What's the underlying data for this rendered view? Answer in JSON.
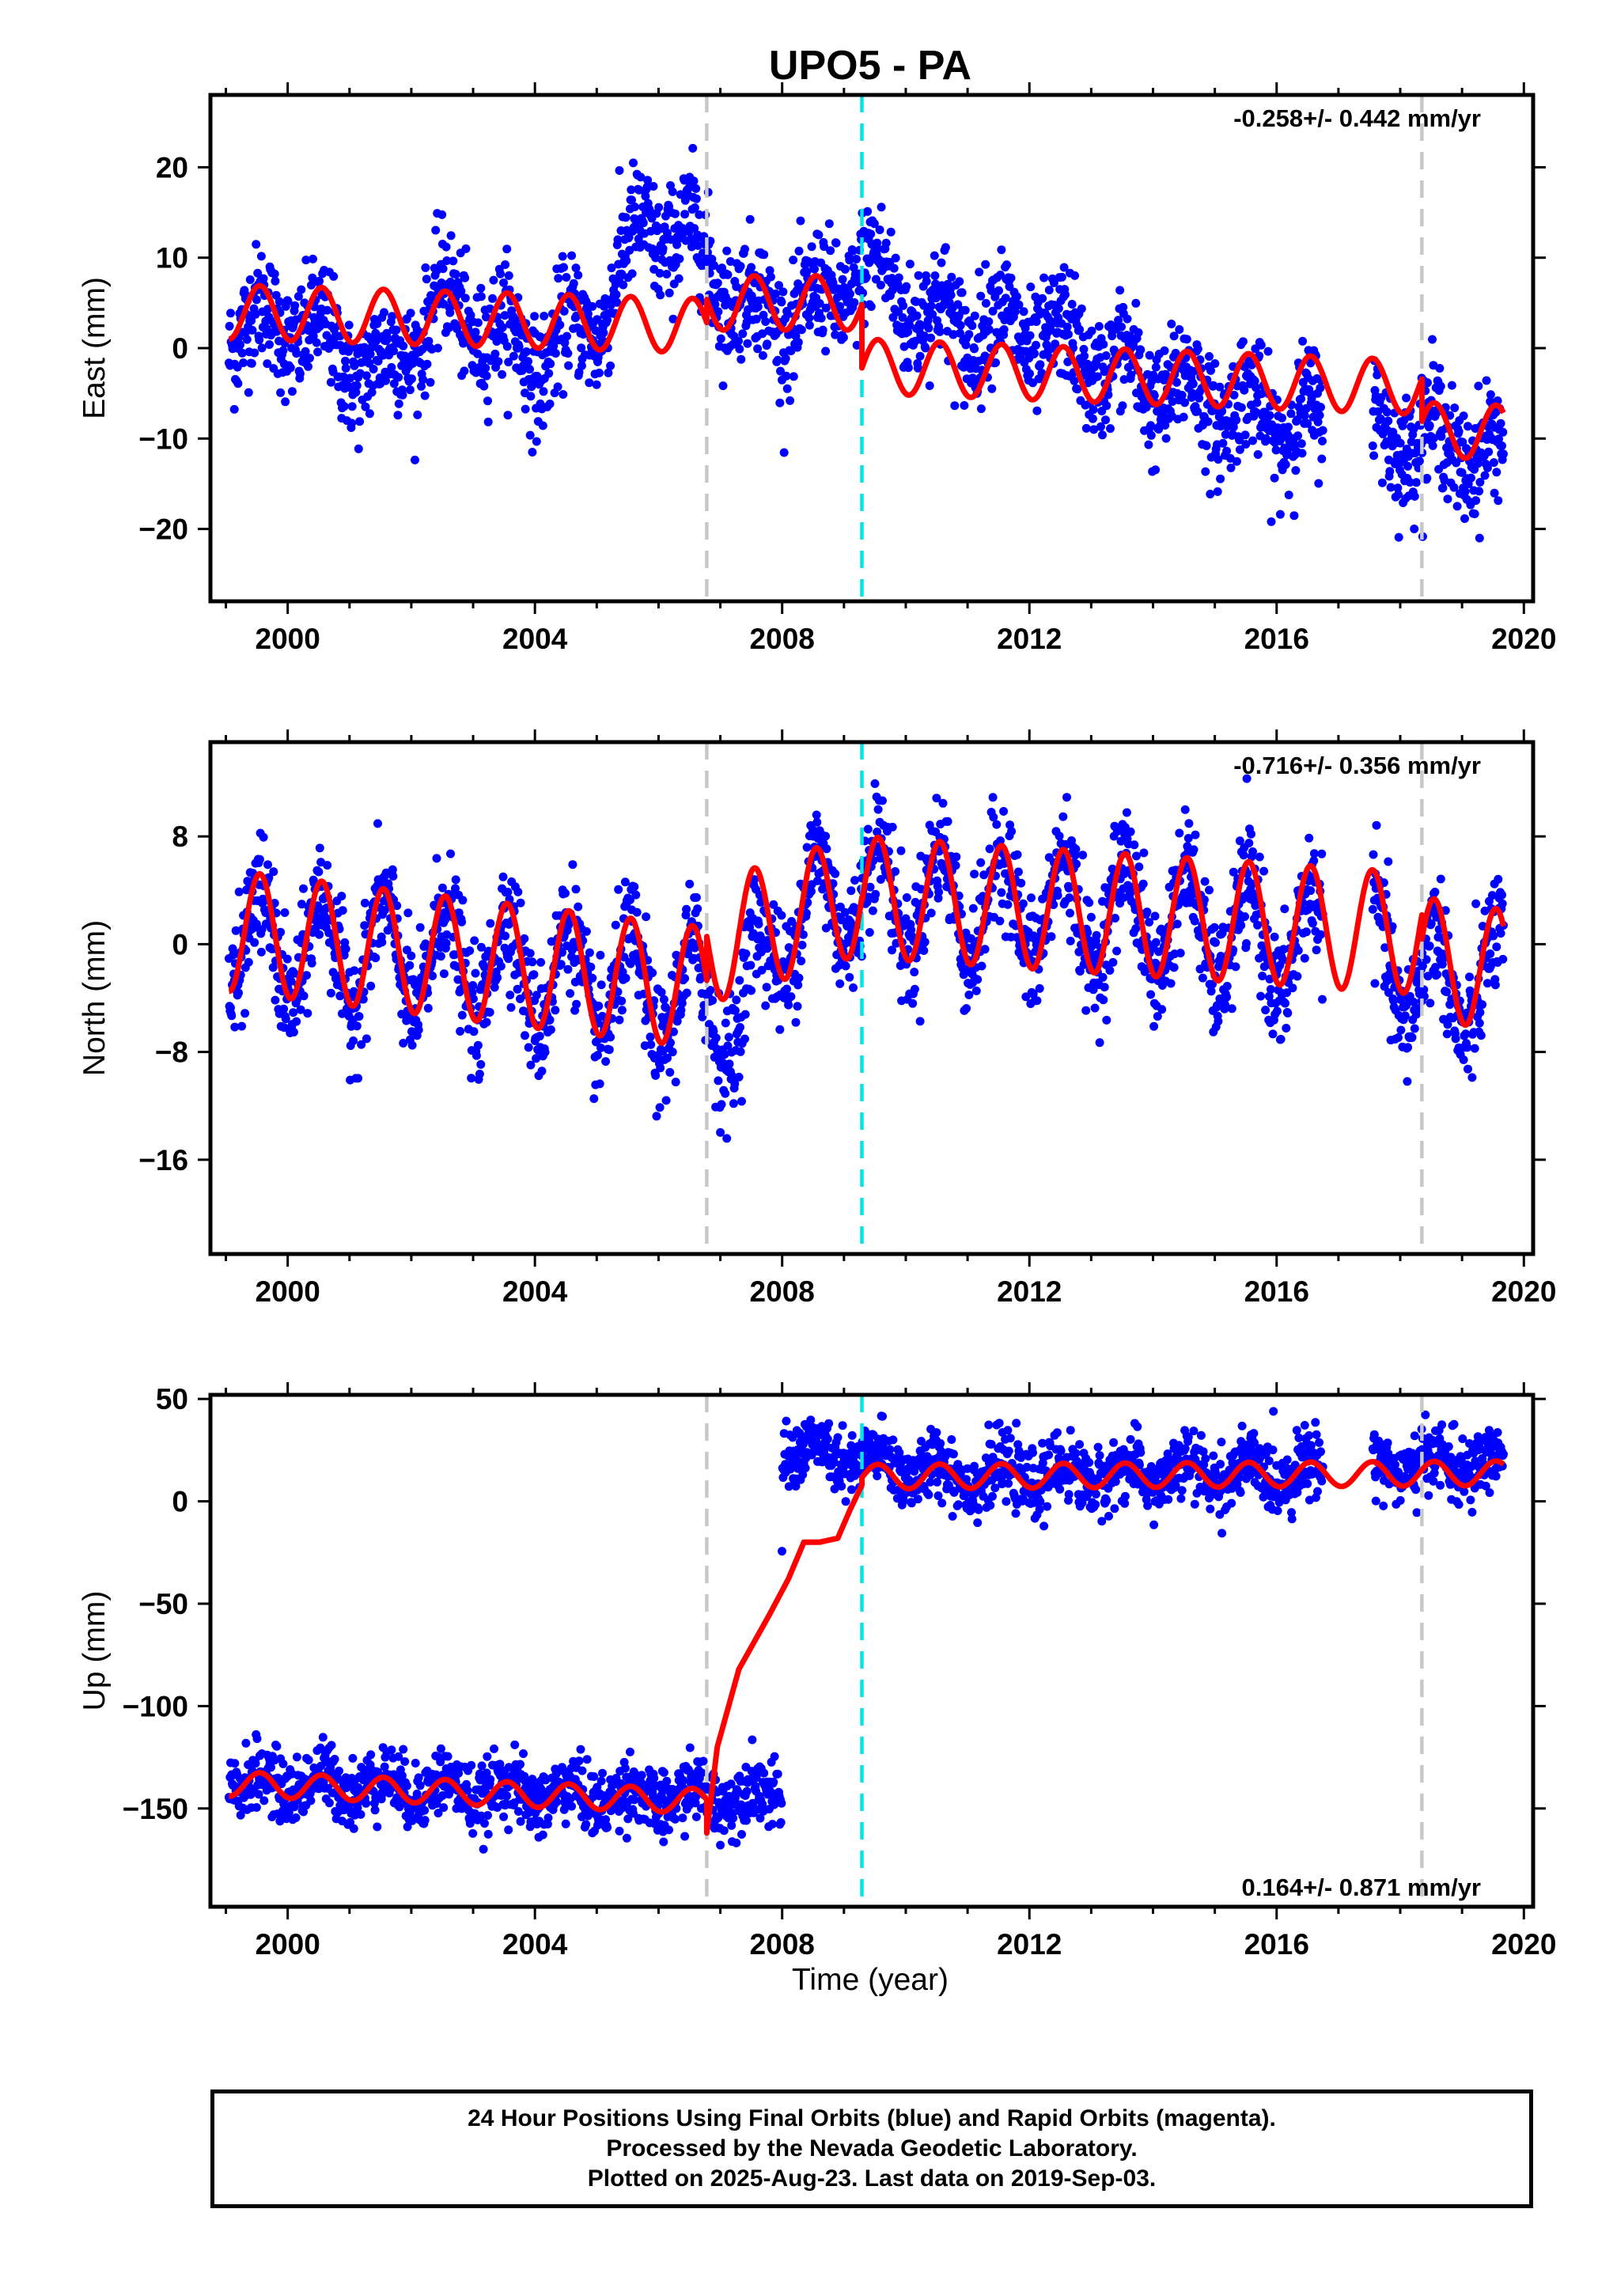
{
  "title": "UPO5 - PA",
  "xlabel": "Time (year)",
  "footer": {
    "line1": "24 Hour Positions Using Final Orbits (blue) and Rapid Orbits (magenta).",
    "line2": "Processed by the Nevada Geodetic Laboratory.",
    "line3": "Plotted on 2025-Aug-23. Last data on 2019-Sep-03."
  },
  "colors": {
    "final_orbits": "#0000ff",
    "model": "#ff0000",
    "equipment_change": "#c8c8c8",
    "earthquake": "#00e5e5"
  },
  "chart_data": [
    {
      "type": "scatter",
      "panel": "east",
      "ylabel": "East (mm)",
      "rate_text": "-0.258+/- 0.442 mm/yr",
      "rate_position": "top-right",
      "xlim": [
        1998.75,
        2020.15
      ],
      "ylim": [
        -28,
        28
      ],
      "xticks": [
        2000,
        2004,
        2008,
        2012,
        2016,
        2020
      ],
      "yticks": [
        -20,
        -10,
        0,
        10,
        20
      ],
      "x_range_data": [
        1999.05,
        2019.67
      ],
      "vertical_lines": [
        {
          "x": 2006.78,
          "type": "equipment_change"
        },
        {
          "x": 2009.29,
          "type": "earthquake"
        },
        {
          "x": 2018.35,
          "type": "equipment_change"
        }
      ],
      "series": [
        {
          "kind": "observations",
          "trend": [
            [
              1999.0,
              2.0
            ],
            [
              2000.0,
              3.0
            ],
            [
              2001.5,
              -3.0
            ],
            [
              2002.5,
              5.0
            ],
            [
              2004.0,
              -1.0
            ],
            [
              2005.0,
              3.0
            ],
            [
              2005.8,
              14.0
            ],
            [
              2006.5,
              12.0
            ],
            [
              2007.5,
              4.0
            ],
            [
              2008.5,
              4.0
            ],
            [
              2009.3,
              9.0
            ],
            [
              2010.5,
              3.0
            ],
            [
              2012.0,
              2.0
            ],
            [
              2014.0,
              -4.0
            ],
            [
              2016.0,
              -8.0
            ],
            [
              2017.5,
              -9.0
            ],
            [
              2018.5,
              -10.0
            ],
            [
              2019.67,
              -12.0
            ]
          ],
          "scatter_sd": 3.2,
          "gaps": [
            [
              2016.75,
              2017.55
            ]
          ]
        },
        {
          "kind": "model",
          "segments": [
            {
              "x_start": 1999.05,
              "x_end": 2006.78,
              "offset_start": 4.0,
              "slope": -0.2,
              "amplitude": 3.0
            },
            {
              "x_start": 2006.78,
              "x_end": 2009.29,
              "offset_start": 5.0,
              "slope": 0.0,
              "amplitude": 3.0
            },
            {
              "x_start": 2009.29,
              "x_end": 2018.35,
              "offset_start": -2.0,
              "slope": -0.258,
              "amplitude": 3.0
            },
            {
              "x_start": 2018.35,
              "x_end": 2019.67,
              "offset_start": -9.0,
              "slope": -0.258,
              "amplitude": 3.0
            }
          ]
        }
      ]
    },
    {
      "type": "scatter",
      "panel": "north",
      "ylabel": "North (mm)",
      "rate_text": "-0.716+/- 0.356 mm/yr",
      "rate_position": "top-right",
      "xlim": [
        1998.75,
        2020.15
      ],
      "ylim": [
        -23,
        15
      ],
      "xticks": [
        2000,
        2004,
        2008,
        2012,
        2016,
        2020
      ],
      "yticks": [
        -16,
        -8,
        0,
        8
      ],
      "x_range_data": [
        1999.05,
        2019.67
      ],
      "vertical_lines": [
        {
          "x": 2006.78,
          "type": "equipment_change"
        },
        {
          "x": 2009.29,
          "type": "earthquake"
        },
        {
          "x": 2018.35,
          "type": "equipment_change"
        }
      ],
      "series": [
        {
          "kind": "observations",
          "trend": [
            [
              1999.0,
              0.0
            ],
            [
              2002.0,
              -1.0
            ],
            [
              2004.0,
              -2.0
            ],
            [
              2006.0,
              -4.0
            ],
            [
              2006.8,
              -4.0
            ],
            [
              2007.3,
              -6.0
            ],
            [
              2007.9,
              1.0
            ],
            [
              2009.0,
              4.0
            ],
            [
              2011.0,
              3.0
            ],
            [
              2014.0,
              2.0
            ],
            [
              2016.0,
              0.0
            ],
            [
              2017.5,
              0.0
            ],
            [
              2018.4,
              -3.0
            ],
            [
              2019.67,
              -3.0
            ]
          ],
          "scatter_sd": 2.2,
          "gaps": [
            [
              2016.75,
              2017.55
            ]
          ]
        },
        {
          "kind": "model",
          "segments": [
            {
              "x_start": 1999.05,
              "x_end": 2006.78,
              "offset_start": 1.0,
              "slope": -0.55,
              "amplitude": 4.5
            },
            {
              "x_start": 2006.78,
              "x_end": 2009.29,
              "offset_start": 0.0,
              "slope": 1.5,
              "amplitude": 4.5
            },
            {
              "x_start": 2009.29,
              "x_end": 2018.35,
              "offset_start": 3.5,
              "slope": -0.3,
              "amplitude": 4.5
            },
            {
              "x_start": 2018.35,
              "x_end": 2019.67,
              "offset_start": -1.0,
              "slope": -0.716,
              "amplitude": 4.5
            }
          ]
        }
      ]
    },
    {
      "type": "scatter",
      "panel": "up",
      "ylabel": "Up (mm)",
      "rate_text": "0.164+/- 0.871 mm/yr",
      "rate_position": "bottom-right",
      "xlim": [
        1998.75,
        2020.15
      ],
      "ylim": [
        -198,
        52
      ],
      "xticks": [
        2000,
        2004,
        2008,
        2012,
        2016,
        2020
      ],
      "yticks": [
        -150,
        -100,
        -50,
        0,
        50
      ],
      "x_range_data": [
        1999.05,
        2019.67
      ],
      "vertical_lines": [
        {
          "x": 2006.78,
          "type": "equipment_change"
        },
        {
          "x": 2009.29,
          "type": "earthquake"
        },
        {
          "x": 2018.35,
          "type": "equipment_change"
        }
      ],
      "series": [
        {
          "kind": "observations",
          "trend": [
            [
              1999.0,
              -138.0
            ],
            [
              2001.0,
              -138.0
            ],
            [
              2004.0,
              -143.0
            ],
            [
              2006.0,
              -145.0
            ],
            [
              2007.99,
              -143.0
            ],
            [
              2008.0,
              25.0
            ],
            [
              2009.3,
              20.0
            ],
            [
              2011.0,
              12.0
            ],
            [
              2014.0,
              13.0
            ],
            [
              2016.0,
              14.0
            ],
            [
              2018.0,
              18.0
            ],
            [
              2019.67,
              18.0
            ]
          ],
          "scatter_sd": 8.0,
          "gaps": [
            [
              2016.75,
              2017.55
            ]
          ]
        },
        {
          "kind": "model",
          "segments": [
            {
              "x_start": 1999.05,
              "x_end": 2006.78,
              "offset_start": -138.0,
              "slope": -1.1,
              "amplitude": 6.0
            }
          ],
          "transient": [
            [
              2006.78,
              -162.0
            ],
            [
              2006.95,
              -120.0
            ],
            [
              2007.3,
              -82.0
            ],
            [
              2007.8,
              -55.0
            ],
            [
              2008.1,
              -38.0
            ],
            [
              2008.35,
              -20.0
            ],
            [
              2008.6,
              -20.0
            ],
            [
              2008.9,
              -18.0
            ],
            [
              2009.1,
              -4.0
            ],
            [
              2009.29,
              8.0
            ]
          ],
          "segments_after": [
            {
              "x_start": 2009.29,
              "x_end": 2019.67,
              "offset_start": 12.0,
              "slope": 0.164,
              "amplitude": 6.0
            }
          ]
        }
      ]
    }
  ]
}
